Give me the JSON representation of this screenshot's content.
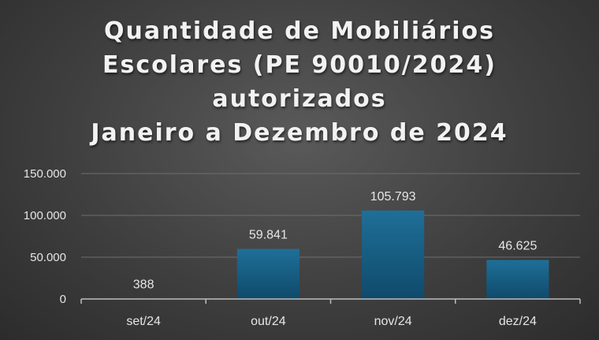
{
  "chart_data": {
    "type": "bar",
    "title_lines": [
      "Quantidade de Mobiliários",
      "Escolares (PE 90010/2024)",
      "autorizados",
      "Janeiro a Dezembro de 2024"
    ],
    "categories": [
      "set/24",
      "out/24",
      "nov/24",
      "dez/24"
    ],
    "values": [
      388,
      59841,
      105793,
      46625
    ],
    "data_labels": [
      "388",
      "59.841",
      "105.793",
      "46.625"
    ],
    "yticks": [
      0,
      50000,
      100000,
      150000
    ],
    "ytick_labels": [
      "0",
      "50.000",
      "100.000",
      "150.000"
    ],
    "ylim": [
      0,
      150000
    ],
    "grid": true,
    "legend": "none",
    "colors": {
      "bar_top": "#1f6f98",
      "bar_bottom": "#0f4a6b",
      "grid": "#6e6e6e",
      "axis": "#bdbdbd",
      "text": "#e6e6e6"
    }
  }
}
